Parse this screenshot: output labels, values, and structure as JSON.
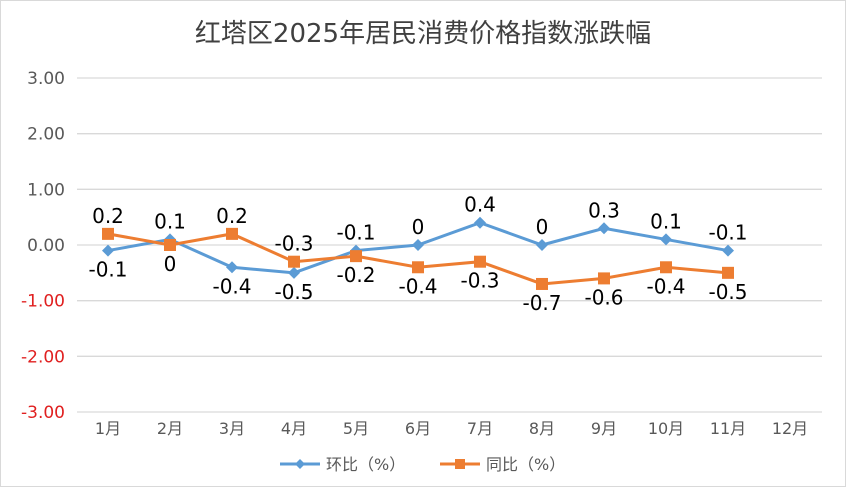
{
  "chart_data": {
    "type": "line",
    "title": "红塔区2025年居民消费价格指数涨跌幅",
    "categories": [
      "1月",
      "2月",
      "3月",
      "4月",
      "5月",
      "6月",
      "7月",
      "8月",
      "9月",
      "10月",
      "11月",
      "12月"
    ],
    "ylim": [
      -3,
      3
    ],
    "yticks": [
      "3.00",
      "2.00",
      "1.00",
      "0.00",
      "-1.00",
      "-2.00",
      "-3.00"
    ],
    "grid": true,
    "legend_position": "bottom",
    "negative_tick_color": "#e02020",
    "series": [
      {
        "name": "环比（%）",
        "color": "#5b9bd5",
        "marker": "diamond",
        "values": [
          -0.1,
          0.1,
          -0.4,
          -0.5,
          -0.1,
          0,
          0.4,
          0,
          0.3,
          0.1,
          -0.1,
          null
        ]
      },
      {
        "name": "同比（%）",
        "color": "#ed7d31",
        "marker": "square",
        "values": [
          0.2,
          0,
          0.2,
          -0.3,
          -0.2,
          -0.4,
          -0.3,
          -0.7,
          -0.6,
          -0.4,
          -0.5,
          null
        ]
      }
    ]
  }
}
